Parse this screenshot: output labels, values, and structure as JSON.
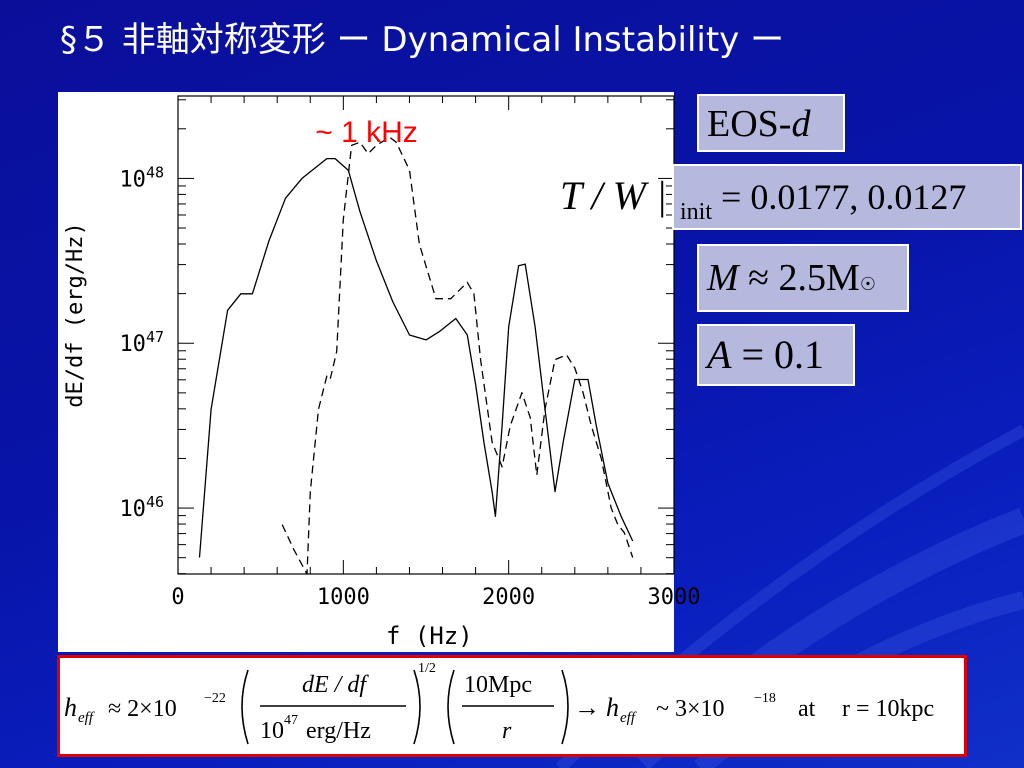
{
  "slide": {
    "title": "§５ 非軸対称変形 ー Dynamical Instability ー"
  },
  "annotation": {
    "peak_label": "~ 1 kHz",
    "peak_label_color": "#ff0000"
  },
  "params": {
    "eos_text": "EOS-",
    "eos_var": "d",
    "tw_lhs": "T / W |",
    "tw_sub": "init",
    "tw_rhs": "= 0.0177, 0.0127",
    "mass_lhs": "M",
    "mass_rhs": "≈ 2.5M",
    "amp_lhs": "A",
    "amp_rhs": "= 0.1"
  },
  "formula": {
    "heff": "h",
    "heff_sub": "eff",
    "approx_coeff": "≈ 2×10",
    "approx_exp": "−22",
    "frac1_num": "dE / df",
    "frac1_den_base": "10",
    "frac1_den_exp": "47",
    "frac1_den_unit": "erg/Hz",
    "power": "1/2",
    "frac2_num": "10Mpc",
    "frac2_den": "r",
    "arrow": "→",
    "result": "~ 3×10",
    "result_exp": "−18",
    "at_text": "at",
    "r_eq": "r = 10kpc"
  },
  "colors": {
    "background": "#0a14aa",
    "box_fill": "#b6b9de",
    "formula_border": "#e10000"
  },
  "chart_data": {
    "type": "line",
    "xlabel": "f (Hz)",
    "ylabel": "dE/df (erg/Hz)",
    "xlim": [
      0,
      3000
    ],
    "yscale": "log",
    "ylim_log10": [
      45.6,
      48.5
    ],
    "xticks": [
      0,
      1000,
      2000,
      3000
    ],
    "xtick_labels": [
      "0",
      "1000",
      "2000",
      "3000"
    ],
    "ytick_labels": [
      {
        "base": "10",
        "exp": "46",
        "value_log10": 46
      },
      {
        "base": "10",
        "exp": "47",
        "value_log10": 47
      },
      {
        "base": "10",
        "exp": "48",
        "value_log10": 48
      }
    ],
    "series": [
      {
        "style": "solid",
        "x": [
          130,
          200,
          300,
          380,
          450,
          550,
          650,
          750,
          850,
          900,
          950,
          1030,
          1100,
          1200,
          1300,
          1400,
          1500,
          1580,
          1680,
          1750,
          1800,
          1850,
          1900,
          1920,
          1960,
          2000,
          2060,
          2100,
          2160,
          2220,
          2280,
          2330,
          2400,
          2480,
          2530,
          2600,
          2680,
          2750
        ],
        "y": [
          45.7,
          46.6,
          47.2,
          47.3,
          47.3,
          47.62,
          47.88,
          48.0,
          48.08,
          48.12,
          48.12,
          48.05,
          47.8,
          47.5,
          47.25,
          47.05,
          47.02,
          47.07,
          47.15,
          47.05,
          46.75,
          46.4,
          46.1,
          45.95,
          46.5,
          47.1,
          47.47,
          47.48,
          47.1,
          46.6,
          46.1,
          46.4,
          46.78,
          46.78,
          46.5,
          46.15,
          45.95,
          45.8
        ]
      },
      {
        "style": "dashed",
        "x": [
          630,
          700,
          780,
          800,
          850,
          900,
          920,
          960,
          1000,
          1050,
          1100,
          1150,
          1200,
          1280,
          1320,
          1400,
          1460,
          1560,
          1650,
          1750,
          1790,
          1830,
          1900,
          1960,
          2010,
          2080,
          2130,
          2170,
          2220,
          2280,
          2350,
          2400,
          2450,
          2500,
          2560,
          2620,
          2660,
          2700,
          2750
        ],
        "y": [
          45.9,
          45.75,
          45.6,
          46.1,
          46.6,
          46.8,
          46.78,
          46.95,
          47.75,
          48.2,
          48.22,
          48.15,
          48.2,
          48.25,
          48.22,
          48.05,
          47.6,
          47.27,
          47.27,
          47.37,
          47.3,
          46.9,
          46.4,
          46.25,
          46.5,
          46.7,
          46.55,
          46.2,
          46.6,
          46.9,
          46.93,
          46.85,
          46.7,
          46.5,
          46.3,
          46.0,
          45.9,
          45.85,
          45.7
        ]
      }
    ]
  }
}
